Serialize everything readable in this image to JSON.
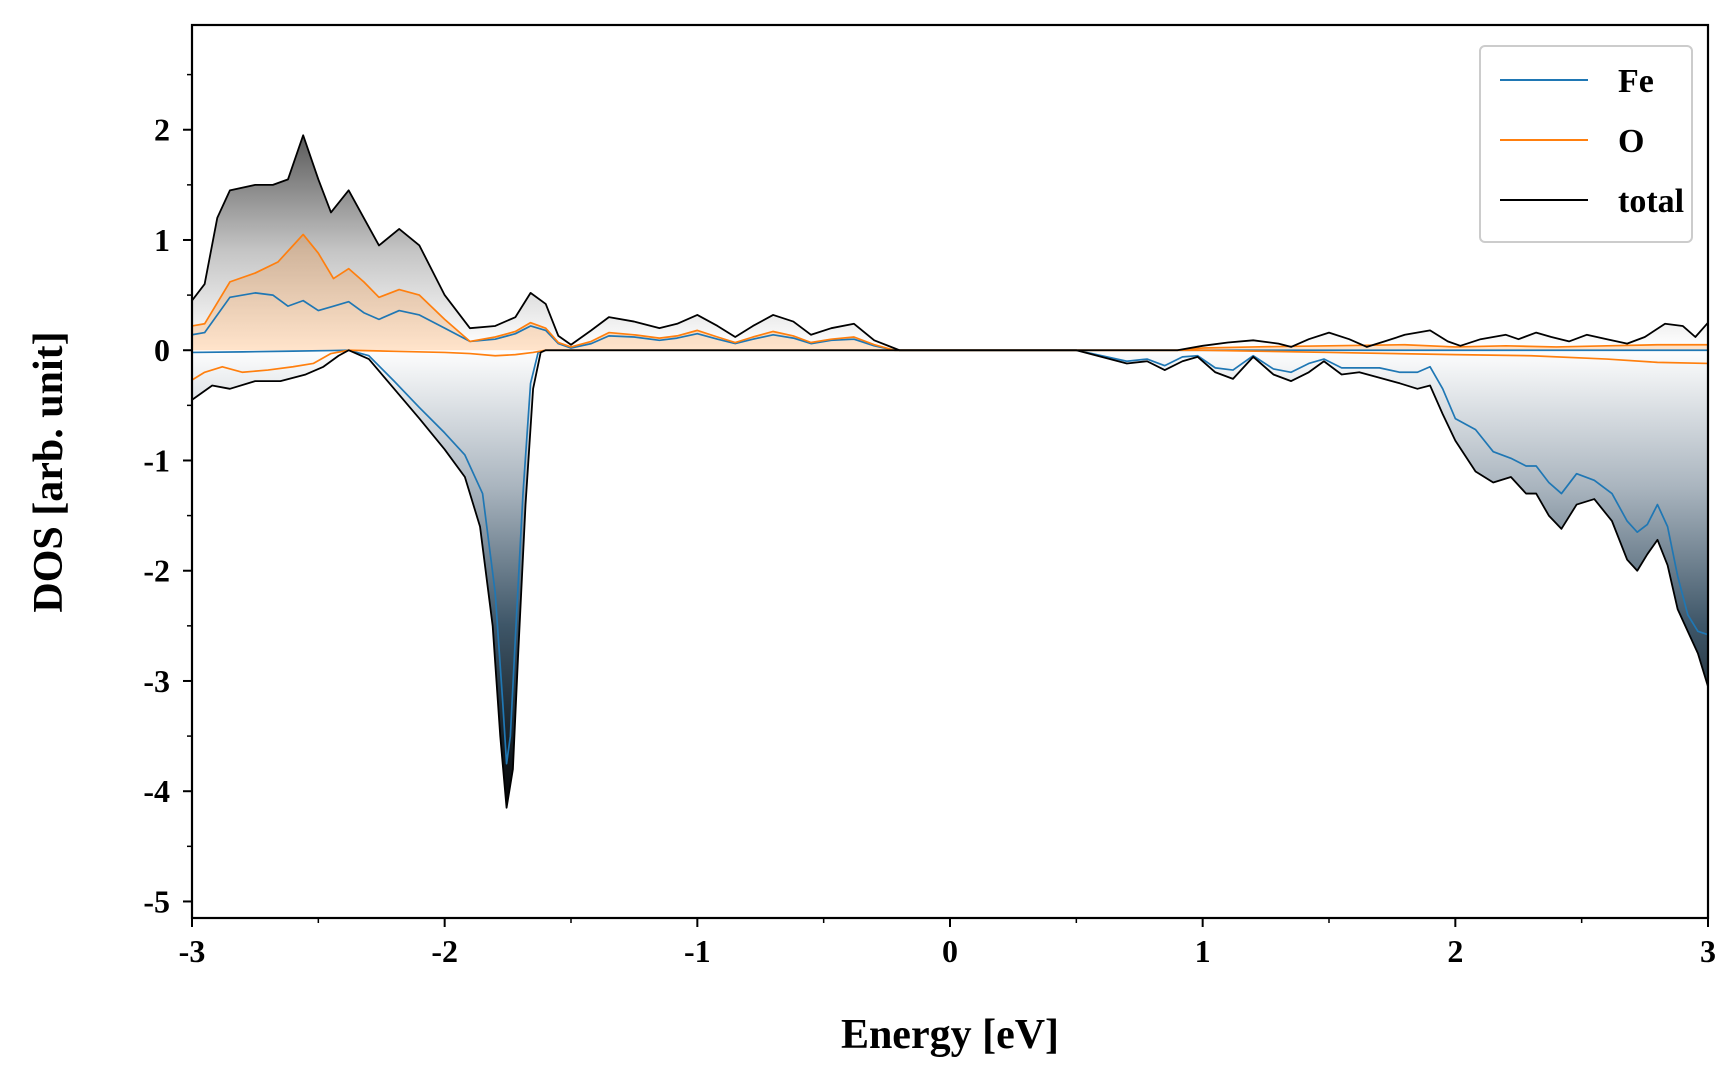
{
  "chart_data": {
    "type": "line",
    "title": "",
    "xlabel": "Energy [eV]",
    "ylabel": "DOS [arb. unit]",
    "xlim": [
      -3,
      3
    ],
    "ylim": [
      -5.15,
      2.95
    ],
    "x_ticks": [
      -3,
      -2,
      -1,
      0,
      1,
      2,
      3
    ],
    "x_tick_labels": [
      "-3",
      "-2",
      "-1",
      "0",
      "1",
      "2",
      "3"
    ],
    "y_ticks": [
      -5,
      -4,
      -3,
      -2,
      -1,
      0,
      1,
      2
    ],
    "y_tick_labels": [
      "-5",
      "-4",
      "-3",
      "-2",
      "-1",
      "0",
      "1",
      "2"
    ],
    "grid": false,
    "legend_position": "top-right",
    "fill_gradient": true,
    "series": [
      {
        "name": "Fe",
        "color": "#1f77b4",
        "spin_up": [
          [
            -3.0,
            0.14
          ],
          [
            -2.95,
            0.16
          ],
          [
            -2.85,
            0.48
          ],
          [
            -2.75,
            0.52
          ],
          [
            -2.68,
            0.5
          ],
          [
            -2.62,
            0.4
          ],
          [
            -2.56,
            0.45
          ],
          [
            -2.5,
            0.36
          ],
          [
            -2.44,
            0.4
          ],
          [
            -2.38,
            0.44
          ],
          [
            -2.32,
            0.34
          ],
          [
            -2.26,
            0.28
          ],
          [
            -2.18,
            0.36
          ],
          [
            -2.1,
            0.32
          ],
          [
            -2.0,
            0.2
          ],
          [
            -1.9,
            0.08
          ],
          [
            -1.8,
            0.1
          ],
          [
            -1.72,
            0.15
          ],
          [
            -1.66,
            0.22
          ],
          [
            -1.6,
            0.18
          ],
          [
            -1.55,
            0.06
          ],
          [
            -1.5,
            0.02
          ],
          [
            -1.42,
            0.06
          ],
          [
            -1.35,
            0.13
          ],
          [
            -1.25,
            0.12
          ],
          [
            -1.15,
            0.09
          ],
          [
            -1.08,
            0.11
          ],
          [
            -1.0,
            0.15
          ],
          [
            -0.92,
            0.1
          ],
          [
            -0.85,
            0.06
          ],
          [
            -0.78,
            0.1
          ],
          [
            -0.7,
            0.14
          ],
          [
            -0.62,
            0.11
          ],
          [
            -0.55,
            0.06
          ],
          [
            -0.47,
            0.09
          ],
          [
            -0.38,
            0.1
          ],
          [
            -0.3,
            0.04
          ],
          [
            -0.22,
            0.0
          ],
          [
            3.0,
            0.0
          ]
        ],
        "spin_down": [
          [
            -3.0,
            -0.02
          ],
          [
            -2.8,
            -0.015
          ],
          [
            -2.6,
            -0.008
          ],
          [
            -2.45,
            -0.003
          ],
          [
            -2.38,
            0.0
          ],
          [
            -2.3,
            -0.05
          ],
          [
            -2.2,
            -0.28
          ],
          [
            -2.1,
            -0.52
          ],
          [
            -2.0,
            -0.75
          ],
          [
            -1.92,
            -0.95
          ],
          [
            -1.85,
            -1.3
          ],
          [
            -1.8,
            -2.2
          ],
          [
            -1.77,
            -3.2
          ],
          [
            -1.755,
            -3.75
          ],
          [
            -1.74,
            -3.5
          ],
          [
            -1.72,
            -2.6
          ],
          [
            -1.69,
            -1.3
          ],
          [
            -1.66,
            -0.3
          ],
          [
            -1.63,
            -0.02
          ],
          [
            -1.6,
            0.0
          ],
          [
            0.5,
            0.0
          ],
          [
            0.6,
            -0.05
          ],
          [
            0.7,
            -0.1
          ],
          [
            0.78,
            -0.08
          ],
          [
            0.85,
            -0.14
          ],
          [
            0.92,
            -0.06
          ],
          [
            0.98,
            -0.05
          ],
          [
            1.05,
            -0.16
          ],
          [
            1.12,
            -0.18
          ],
          [
            1.2,
            -0.05
          ],
          [
            1.28,
            -0.17
          ],
          [
            1.35,
            -0.2
          ],
          [
            1.42,
            -0.12
          ],
          [
            1.48,
            -0.08
          ],
          [
            1.55,
            -0.16
          ],
          [
            1.62,
            -0.16
          ],
          [
            1.7,
            -0.16
          ],
          [
            1.78,
            -0.2
          ],
          [
            1.85,
            -0.2
          ],
          [
            1.9,
            -0.15
          ],
          [
            1.95,
            -0.35
          ],
          [
            2.0,
            -0.62
          ],
          [
            2.08,
            -0.72
          ],
          [
            2.15,
            -0.92
          ],
          [
            2.22,
            -0.98
          ],
          [
            2.28,
            -1.05
          ],
          [
            2.32,
            -1.05
          ],
          [
            2.37,
            -1.2
          ],
          [
            2.42,
            -1.3
          ],
          [
            2.48,
            -1.12
          ],
          [
            2.55,
            -1.18
          ],
          [
            2.62,
            -1.3
          ],
          [
            2.68,
            -1.55
          ],
          [
            2.72,
            -1.65
          ],
          [
            2.76,
            -1.58
          ],
          [
            2.8,
            -1.4
          ],
          [
            2.84,
            -1.6
          ],
          [
            2.88,
            -2.05
          ],
          [
            2.92,
            -2.4
          ],
          [
            2.96,
            -2.55
          ],
          [
            3.0,
            -2.58
          ]
        ]
      },
      {
        "name": "O",
        "color": "#ff7f0e",
        "spin_up": [
          [
            -3.0,
            0.22
          ],
          [
            -2.95,
            0.24
          ],
          [
            -2.85,
            0.62
          ],
          [
            -2.75,
            0.7
          ],
          [
            -2.66,
            0.8
          ],
          [
            -2.6,
            0.95
          ],
          [
            -2.56,
            1.05
          ],
          [
            -2.5,
            0.88
          ],
          [
            -2.44,
            0.65
          ],
          [
            -2.38,
            0.74
          ],
          [
            -2.32,
            0.62
          ],
          [
            -2.26,
            0.48
          ],
          [
            -2.18,
            0.55
          ],
          [
            -2.1,
            0.5
          ],
          [
            -2.0,
            0.28
          ],
          [
            -1.9,
            0.08
          ],
          [
            -1.8,
            0.12
          ],
          [
            -1.72,
            0.17
          ],
          [
            -1.66,
            0.25
          ],
          [
            -1.6,
            0.2
          ],
          [
            -1.55,
            0.07
          ],
          [
            -1.5,
            0.03
          ],
          [
            -1.42,
            0.08
          ],
          [
            -1.35,
            0.16
          ],
          [
            -1.25,
            0.14
          ],
          [
            -1.15,
            0.11
          ],
          [
            -1.08,
            0.13
          ],
          [
            -1.0,
            0.18
          ],
          [
            -0.92,
            0.12
          ],
          [
            -0.85,
            0.07
          ],
          [
            -0.78,
            0.12
          ],
          [
            -0.7,
            0.17
          ],
          [
            -0.62,
            0.13
          ],
          [
            -0.55,
            0.07
          ],
          [
            -0.47,
            0.1
          ],
          [
            -0.38,
            0.12
          ],
          [
            -0.3,
            0.05
          ],
          [
            -0.22,
            0.0
          ],
          [
            0.9,
            0.0
          ],
          [
            1.0,
            0.02
          ],
          [
            1.2,
            0.03
          ],
          [
            1.5,
            0.04
          ],
          [
            1.8,
            0.05
          ],
          [
            2.0,
            0.03
          ],
          [
            2.2,
            0.04
          ],
          [
            2.4,
            0.03
          ],
          [
            2.6,
            0.04
          ],
          [
            2.8,
            0.05
          ],
          [
            3.0,
            0.05
          ]
        ],
        "spin_down": [
          [
            -3.0,
            -0.27
          ],
          [
            -2.95,
            -0.2
          ],
          [
            -2.88,
            -0.15
          ],
          [
            -2.8,
            -0.2
          ],
          [
            -2.7,
            -0.18
          ],
          [
            -2.6,
            -0.15
          ],
          [
            -2.52,
            -0.12
          ],
          [
            -2.45,
            -0.03
          ],
          [
            -2.38,
            0.0
          ],
          [
            -2.2,
            -0.01
          ],
          [
            -2.0,
            -0.02
          ],
          [
            -1.9,
            -0.03
          ],
          [
            -1.8,
            -0.05
          ],
          [
            -1.72,
            -0.04
          ],
          [
            -1.65,
            -0.02
          ],
          [
            -1.6,
            0.0
          ],
          [
            1.0,
            0.0
          ],
          [
            1.5,
            -0.02
          ],
          [
            2.0,
            -0.04
          ],
          [
            2.3,
            -0.05
          ],
          [
            2.6,
            -0.08
          ],
          [
            2.8,
            -0.11
          ],
          [
            3.0,
            -0.12
          ]
        ]
      },
      {
        "name": "total",
        "color": "#000000",
        "spin_up": [
          [
            -3.0,
            0.45
          ],
          [
            -2.95,
            0.6
          ],
          [
            -2.9,
            1.2
          ],
          [
            -2.85,
            1.45
          ],
          [
            -2.75,
            1.5
          ],
          [
            -2.68,
            1.5
          ],
          [
            -2.62,
            1.55
          ],
          [
            -2.56,
            1.95
          ],
          [
            -2.5,
            1.55
          ],
          [
            -2.45,
            1.25
          ],
          [
            -2.38,
            1.45
          ],
          [
            -2.32,
            1.2
          ],
          [
            -2.26,
            0.95
          ],
          [
            -2.18,
            1.1
          ],
          [
            -2.1,
            0.95
          ],
          [
            -2.0,
            0.5
          ],
          [
            -1.9,
            0.2
          ],
          [
            -1.8,
            0.22
          ],
          [
            -1.72,
            0.3
          ],
          [
            -1.66,
            0.52
          ],
          [
            -1.6,
            0.42
          ],
          [
            -1.55,
            0.13
          ],
          [
            -1.5,
            0.05
          ],
          [
            -1.42,
            0.18
          ],
          [
            -1.35,
            0.3
          ],
          [
            -1.25,
            0.26
          ],
          [
            -1.15,
            0.2
          ],
          [
            -1.08,
            0.24
          ],
          [
            -1.0,
            0.32
          ],
          [
            -0.92,
            0.22
          ],
          [
            -0.85,
            0.12
          ],
          [
            -0.78,
            0.22
          ],
          [
            -0.7,
            0.32
          ],
          [
            -0.62,
            0.26
          ],
          [
            -0.55,
            0.14
          ],
          [
            -0.47,
            0.2
          ],
          [
            -0.38,
            0.24
          ],
          [
            -0.3,
            0.09
          ],
          [
            -0.2,
            0.0
          ],
          [
            0.9,
            0.0
          ],
          [
            1.0,
            0.04
          ],
          [
            1.1,
            0.07
          ],
          [
            1.2,
            0.09
          ],
          [
            1.3,
            0.06
          ],
          [
            1.35,
            0.03
          ],
          [
            1.42,
            0.1
          ],
          [
            1.5,
            0.16
          ],
          [
            1.58,
            0.1
          ],
          [
            1.65,
            0.03
          ],
          [
            1.72,
            0.08
          ],
          [
            1.8,
            0.14
          ],
          [
            1.9,
            0.18
          ],
          [
            1.97,
            0.08
          ],
          [
            2.02,
            0.04
          ],
          [
            2.1,
            0.1
          ],
          [
            2.2,
            0.14
          ],
          [
            2.25,
            0.1
          ],
          [
            2.32,
            0.16
          ],
          [
            2.38,
            0.12
          ],
          [
            2.45,
            0.08
          ],
          [
            2.52,
            0.14
          ],
          [
            2.6,
            0.1
          ],
          [
            2.68,
            0.06
          ],
          [
            2.75,
            0.12
          ],
          [
            2.83,
            0.24
          ],
          [
            2.9,
            0.22
          ],
          [
            2.95,
            0.12
          ],
          [
            3.0,
            0.25
          ]
        ],
        "spin_down": [
          [
            -3.0,
            -0.45
          ],
          [
            -2.92,
            -0.32
          ],
          [
            -2.85,
            -0.35
          ],
          [
            -2.75,
            -0.28
          ],
          [
            -2.65,
            -0.28
          ],
          [
            -2.55,
            -0.22
          ],
          [
            -2.48,
            -0.15
          ],
          [
            -2.42,
            -0.05
          ],
          [
            -2.38,
            0.0
          ],
          [
            -2.3,
            -0.08
          ],
          [
            -2.2,
            -0.35
          ],
          [
            -2.1,
            -0.62
          ],
          [
            -2.0,
            -0.9
          ],
          [
            -1.92,
            -1.15
          ],
          [
            -1.86,
            -1.6
          ],
          [
            -1.81,
            -2.5
          ],
          [
            -1.78,
            -3.5
          ],
          [
            -1.755,
            -4.15
          ],
          [
            -1.73,
            -3.8
          ],
          [
            -1.71,
            -2.8
          ],
          [
            -1.68,
            -1.4
          ],
          [
            -1.65,
            -0.35
          ],
          [
            -1.62,
            -0.02
          ],
          [
            -1.6,
            0.0
          ],
          [
            0.5,
            0.0
          ],
          [
            0.6,
            -0.06
          ],
          [
            0.7,
            -0.12
          ],
          [
            0.78,
            -0.1
          ],
          [
            0.85,
            -0.18
          ],
          [
            0.92,
            -0.1
          ],
          [
            0.98,
            -0.06
          ],
          [
            1.05,
            -0.2
          ],
          [
            1.12,
            -0.26
          ],
          [
            1.2,
            -0.06
          ],
          [
            1.28,
            -0.22
          ],
          [
            1.35,
            -0.28
          ],
          [
            1.42,
            -0.2
          ],
          [
            1.48,
            -0.1
          ],
          [
            1.55,
            -0.22
          ],
          [
            1.62,
            -0.2
          ],
          [
            1.7,
            -0.25
          ],
          [
            1.78,
            -0.3
          ],
          [
            1.85,
            -0.35
          ],
          [
            1.9,
            -0.32
          ],
          [
            1.95,
            -0.58
          ],
          [
            2.0,
            -0.82
          ],
          [
            2.08,
            -1.1
          ],
          [
            2.15,
            -1.2
          ],
          [
            2.22,
            -1.15
          ],
          [
            2.28,
            -1.3
          ],
          [
            2.32,
            -1.3
          ],
          [
            2.37,
            -1.5
          ],
          [
            2.42,
            -1.62
          ],
          [
            2.48,
            -1.4
          ],
          [
            2.55,
            -1.35
          ],
          [
            2.62,
            -1.55
          ],
          [
            2.68,
            -1.9
          ],
          [
            2.72,
            -2.0
          ],
          [
            2.76,
            -1.85
          ],
          [
            2.8,
            -1.72
          ],
          [
            2.84,
            -1.95
          ],
          [
            2.88,
            -2.35
          ],
          [
            2.92,
            -2.55
          ],
          [
            2.96,
            -2.75
          ],
          [
            3.0,
            -3.05
          ]
        ]
      }
    ]
  }
}
